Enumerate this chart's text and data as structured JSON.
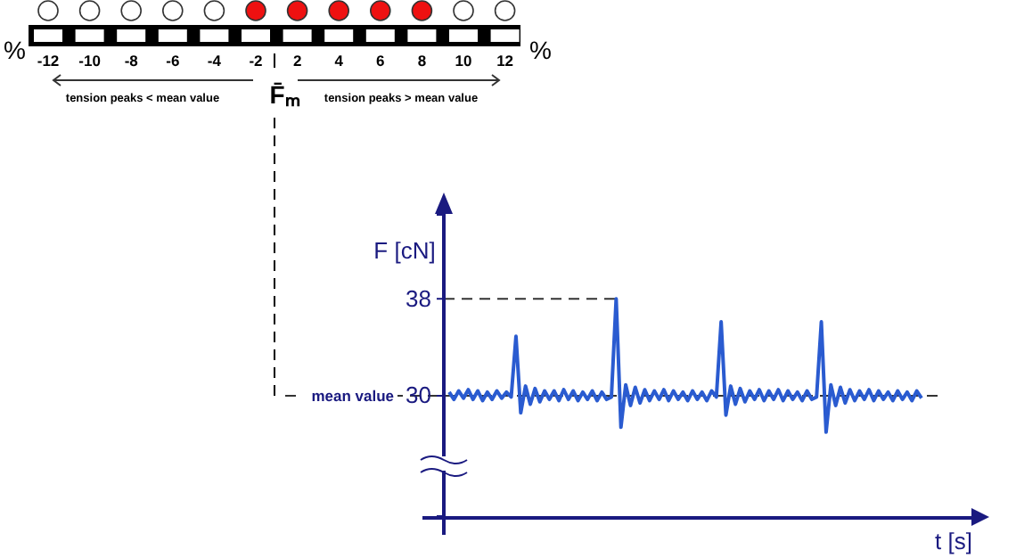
{
  "chart_data": [
    {
      "type": "other",
      "categories": [
        "-12",
        "-10",
        "-8",
        "-6",
        "-4",
        "-2",
        "2",
        "4",
        "6",
        "8",
        "10",
        "12"
      ],
      "colors": [
        "#ffffff",
        "#ffffff",
        "#ffffff",
        "#ffffff",
        "#ffffff",
        "#ee1111",
        "#ee1111",
        "#ee1111",
        "#ee1111",
        "#ee1111",
        "#ffffff",
        "#ffffff"
      ],
      "annotations": [
        "%",
        "%",
        "tension peaks < mean value",
        "tension peaks > mean value",
        "F̄ₘ"
      ]
    },
    {
      "type": "line",
      "xlabel": "t [s]",
      "ylabel": "F [cN]",
      "ylim": [
        20,
        45
      ],
      "yticks": [
        30,
        38
      ],
      "categories": [
        null,
        null,
        null,
        null,
        null,
        null,
        null,
        null,
        null,
        null,
        null,
        null,
        null,
        null,
        null,
        null,
        null,
        null,
        null,
        null,
        null,
        null,
        null,
        null,
        null,
        null,
        null,
        null,
        null,
        null,
        null,
        null,
        null,
        null,
        null,
        null,
        null,
        null,
        null,
        null,
        null,
        null,
        null,
        null,
        null,
        null,
        null,
        null,
        null,
        null,
        null,
        null,
        null,
        null,
        null,
        null,
        null,
        null,
        null,
        null,
        null,
        null,
        null,
        null,
        null,
        null,
        null,
        null,
        null,
        null,
        null,
        null,
        null,
        null,
        null,
        null,
        null,
        null,
        null,
        null,
        null,
        null,
        null,
        null,
        null,
        null,
        null,
        null,
        null,
        null,
        null,
        null,
        null,
        null,
        null,
        null,
        null,
        null,
        null,
        null
      ],
      "series": [
        {
          "color": "#2a5bd0",
          "values": [
            30.3,
            29.7,
            30.4,
            29.8,
            30.5,
            29.7,
            30.4,
            29.6,
            30.3,
            29.7,
            30.4,
            29.8,
            30.3,
            29.9,
            34.9,
            28.6,
            30.8,
            29.3,
            30.6,
            29.5,
            30.4,
            29.7,
            30.4,
            29.6,
            30.5,
            29.7,
            30.4,
            29.6,
            30.3,
            29.7,
            30.4,
            29.6,
            30.3,
            29.7,
            29.9,
            38,
            27.4,
            30.9,
            29.2,
            30.7,
            29.4,
            30.5,
            29.6,
            30.4,
            29.7,
            30.5,
            29.6,
            30.4,
            29.7,
            30.3,
            29.6,
            30.4,
            29.7,
            30.3,
            29.6,
            30.4,
            29.9,
            36.1,
            28.4,
            30.8,
            29.3,
            30.6,
            29.5,
            30.4,
            29.7,
            30.5,
            29.6,
            30.4,
            29.7,
            30.5,
            29.6,
            30.4,
            29.7,
            30.3,
            29.6,
            30.4,
            29.7,
            29.9,
            36.1,
            27.0,
            30.9,
            29.2,
            30.7,
            29.4,
            30.5,
            29.6,
            30.4,
            29.7,
            30.5,
            29.6,
            30.4,
            29.7,
            30.3,
            29.6,
            30.4,
            29.7,
            30.3,
            29.6,
            30.4,
            29.8
          ]
        }
      ],
      "ref_lines": [
        {
          "axis": "y",
          "value": 30,
          "label": "mean value",
          "line_style": "dashed"
        },
        {
          "axis": "y",
          "value": 38,
          "label": null,
          "line_style": "dashed"
        }
      ],
      "line_style": "solid",
      "marker": "none",
      "grid": false
    }
  ]
}
